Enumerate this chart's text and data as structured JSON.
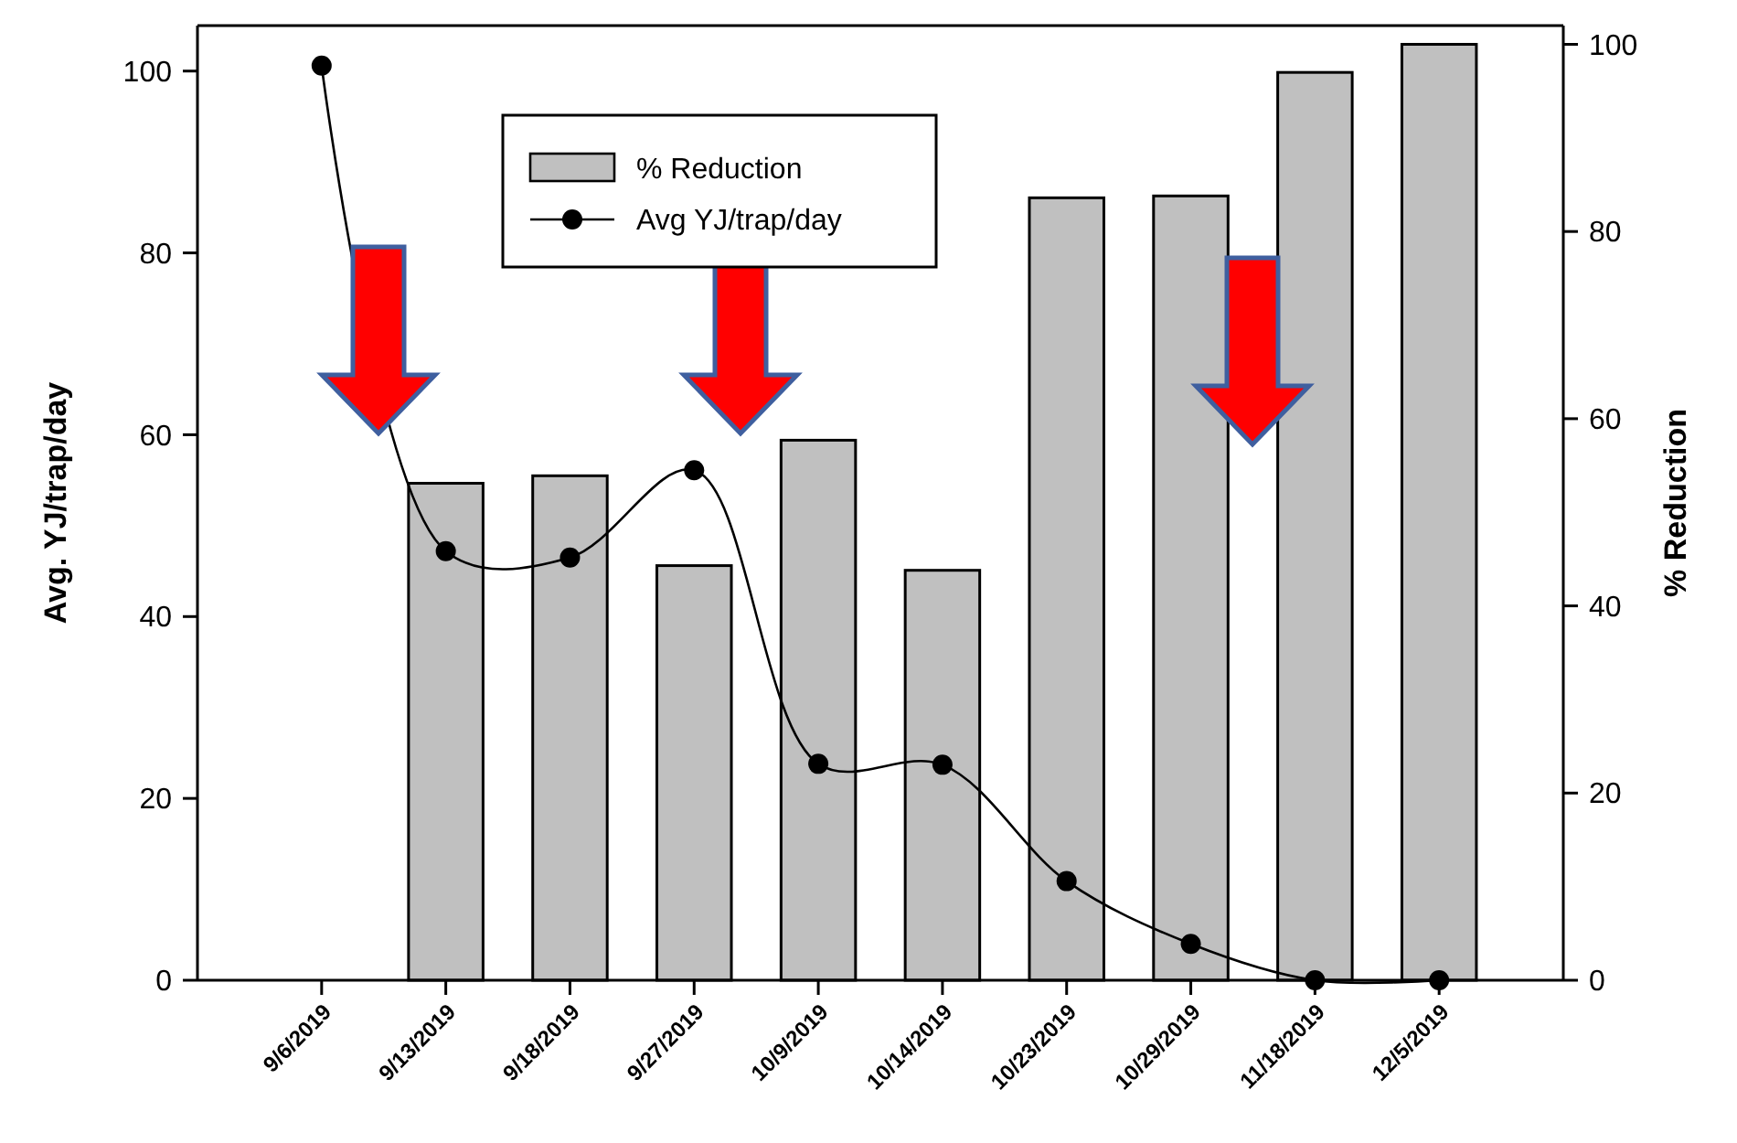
{
  "chart_data": {
    "type": "bar",
    "categories": [
      "9/6/2019",
      "9/13/2019",
      "9/18/2019",
      "9/27/2019",
      "10/9/2019",
      "10/14/2019",
      "10/23/2019",
      "10/29/2019",
      "11/18/2019",
      "12/5/2019"
    ],
    "ylabel": "Avg. YJ/trap/day",
    "y2label": "% Reduction",
    "ylim": [
      0,
      105
    ],
    "yticks": [
      0,
      20,
      40,
      60,
      80,
      100
    ],
    "y2lim": [
      0,
      102
    ],
    "y2ticks": [
      0,
      20,
      40,
      60,
      80,
      100
    ],
    "series": [
      {
        "name": "% Reduction",
        "axis": "y2",
        "color": "#c0c0c0",
        "values": [
          null,
          53.1,
          53.9,
          44.3,
          57.7,
          43.8,
          83.6,
          83.8,
          97.0,
          100
        ]
      },
      {
        "name": "Avg YJ/trap/day",
        "type": "line",
        "axis": "y",
        "color": "#000000",
        "marker": "circle",
        "line_style": "solid",
        "values": [
          100.6,
          47.2,
          46.5,
          56.1,
          23.8,
          23.7,
          10.9,
          4.0,
          0,
          0
        ]
      }
    ],
    "legend": "top",
    "grid": false
  }
}
